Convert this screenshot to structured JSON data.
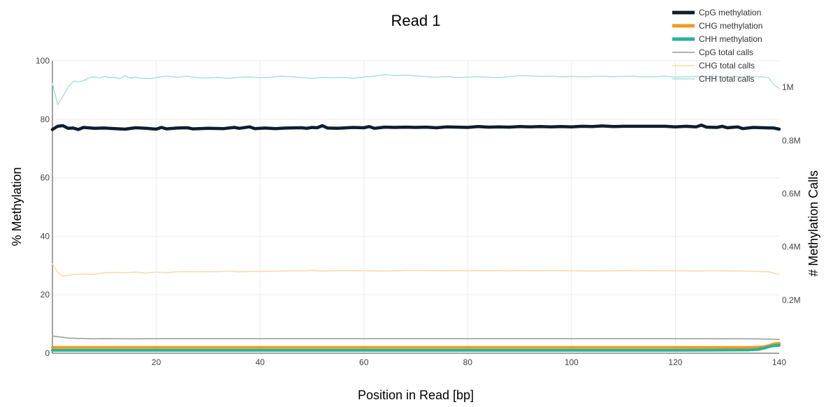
{
  "chart_data": {
    "type": "line",
    "title": "Read 1",
    "xlabel": "Position in Read [bp]",
    "ylabel": "% Methylation",
    "y2label": "# Methylation Calls",
    "xlim": [
      0,
      140
    ],
    "ylim": [
      0,
      100
    ],
    "y2lim": [
      0,
      1100000
    ],
    "grid": true,
    "legend_position": "top-right",
    "x_ticks": [
      20,
      40,
      60,
      80,
      100,
      120,
      140
    ],
    "x_tick_labels": [
      "20",
      "40",
      "60",
      "80",
      "100",
      "120",
      "140"
    ],
    "y_ticks": [
      0,
      20,
      40,
      60,
      80,
      100
    ],
    "y_tick_labels": [
      "0",
      "20",
      "40",
      "60",
      "80",
      "100"
    ],
    "y2_ticks": [
      200000,
      400000,
      600000,
      800000,
      1000000
    ],
    "y2_tick_labels": [
      "0.2M",
      "0.4M",
      "0.6M",
      "0.8M",
      "1M"
    ],
    "series": [
      {
        "name": "CpG methylation",
        "axis": "left",
        "color": "#0e1e2e",
        "points": [
          [
            0,
            76.5
          ],
          [
            1,
            77.6
          ],
          [
            2,
            77.8
          ],
          [
            3,
            76.9
          ],
          [
            4,
            77.0
          ],
          [
            5,
            76.5
          ],
          [
            6,
            77.2
          ],
          [
            8,
            76.9
          ],
          [
            10,
            77.0
          ],
          [
            12,
            76.8
          ],
          [
            14,
            76.6
          ],
          [
            16,
            77.1
          ],
          [
            18,
            76.9
          ],
          [
            20,
            76.6
          ],
          [
            21,
            77.2
          ],
          [
            22,
            76.7
          ],
          [
            24,
            77.0
          ],
          [
            26,
            77.1
          ],
          [
            27,
            76.7
          ],
          [
            30,
            76.9
          ],
          [
            33,
            76.8
          ],
          [
            35,
            77.2
          ],
          [
            36,
            76.9
          ],
          [
            38,
            77.4
          ],
          [
            39,
            76.8
          ],
          [
            41,
            77.0
          ],
          [
            43,
            76.8
          ],
          [
            45,
            77.0
          ],
          [
            48,
            77.1
          ],
          [
            49,
            76.9
          ],
          [
            50,
            77.2
          ],
          [
            51,
            77.1
          ],
          [
            52,
            77.8
          ],
          [
            53,
            77.0
          ],
          [
            55,
            76.9
          ],
          [
            58,
            77.2
          ],
          [
            60,
            77.1
          ],
          [
            61,
            77.5
          ],
          [
            62,
            76.9
          ],
          [
            64,
            77.3
          ],
          [
            66,
            77.2
          ],
          [
            68,
            77.3
          ],
          [
            70,
            77.2
          ],
          [
            72,
            77.3
          ],
          [
            74,
            77.1
          ],
          [
            76,
            77.4
          ],
          [
            78,
            77.3
          ],
          [
            80,
            77.2
          ],
          [
            82,
            77.5
          ],
          [
            84,
            77.3
          ],
          [
            86,
            77.4
          ],
          [
            88,
            77.3
          ],
          [
            90,
            77.5
          ],
          [
            92,
            77.4
          ],
          [
            94,
            77.5
          ],
          [
            96,
            77.4
          ],
          [
            98,
            77.5
          ],
          [
            100,
            77.4
          ],
          [
            102,
            77.6
          ],
          [
            104,
            77.5
          ],
          [
            106,
            77.7
          ],
          [
            108,
            77.5
          ],
          [
            110,
            77.6
          ],
          [
            112,
            77.6
          ],
          [
            114,
            77.6
          ],
          [
            116,
            77.6
          ],
          [
            118,
            77.6
          ],
          [
            120,
            77.4
          ],
          [
            122,
            77.6
          ],
          [
            124,
            77.4
          ],
          [
            125,
            78.0
          ],
          [
            126,
            77.3
          ],
          [
            128,
            77.2
          ],
          [
            129,
            77.6
          ],
          [
            130,
            77.1
          ],
          [
            132,
            77.4
          ],
          [
            133,
            76.8
          ],
          [
            135,
            77.2
          ],
          [
            137,
            77.1
          ],
          [
            139,
            77.0
          ],
          [
            140,
            76.6
          ]
        ]
      },
      {
        "name": "CHG methylation",
        "axis": "left",
        "color": "#f29a1c",
        "points": [
          [
            0,
            2.0
          ],
          [
            10,
            2.0
          ],
          [
            20,
            2.0
          ],
          [
            35,
            2.0
          ],
          [
            40,
            2.0
          ],
          [
            60,
            2.0
          ],
          [
            80,
            2.0
          ],
          [
            100,
            2.0
          ],
          [
            120,
            2.0
          ],
          [
            135,
            2.0
          ],
          [
            137,
            2.2
          ],
          [
            138,
            2.6
          ],
          [
            139,
            3.2
          ],
          [
            140,
            3.4
          ]
        ]
      },
      {
        "name": "CHH methylation",
        "axis": "left",
        "color": "#26b39a",
        "points": [
          [
            0,
            1.0
          ],
          [
            20,
            1.0
          ],
          [
            40,
            1.0
          ],
          [
            60,
            1.0
          ],
          [
            80,
            1.0
          ],
          [
            100,
            1.0
          ],
          [
            120,
            1.0
          ],
          [
            134,
            1.1
          ],
          [
            136,
            1.3
          ],
          [
            137,
            1.7
          ],
          [
            138,
            2.2
          ],
          [
            139,
            2.6
          ],
          [
            140,
            2.7
          ]
        ]
      },
      {
        "name": "CpG total calls",
        "axis": "right",
        "color": "#999999",
        "points": [
          [
            0,
            65000
          ],
          [
            1,
            62000
          ],
          [
            2,
            60000
          ],
          [
            3,
            57000
          ],
          [
            5,
            56000
          ],
          [
            8,
            54000
          ],
          [
            10,
            55000
          ],
          [
            15,
            54000
          ],
          [
            20,
            55000
          ],
          [
            40,
            55000
          ],
          [
            60,
            55000
          ],
          [
            80,
            55000
          ],
          [
            100,
            55000
          ],
          [
            120,
            55000
          ],
          [
            135,
            54000
          ],
          [
            138,
            53000
          ],
          [
            140,
            52000
          ]
        ]
      },
      {
        "name": "CHG total calls",
        "axis": "right",
        "color": "#fdd8a8",
        "points": [
          [
            0,
            336000
          ],
          [
            1,
            305000
          ],
          [
            2,
            290000
          ],
          [
            3,
            292000
          ],
          [
            4,
            296000
          ],
          [
            6,
            298000
          ],
          [
            8,
            296000
          ],
          [
            10,
            303000
          ],
          [
            12,
            304000
          ],
          [
            14,
            303000
          ],
          [
            16,
            305000
          ],
          [
            18,
            302000
          ],
          [
            20,
            305000
          ],
          [
            22,
            303000
          ],
          [
            24,
            306000
          ],
          [
            26,
            307000
          ],
          [
            28,
            306000
          ],
          [
            30,
            307000
          ],
          [
            32,
            307000
          ],
          [
            34,
            309000
          ],
          [
            36,
            306000
          ],
          [
            38,
            308000
          ],
          [
            40,
            308000
          ],
          [
            44,
            309000
          ],
          [
            48,
            310000
          ],
          [
            50,
            312000
          ],
          [
            52,
            309000
          ],
          [
            56,
            311000
          ],
          [
            60,
            310000
          ],
          [
            64,
            309000
          ],
          [
            68,
            311000
          ],
          [
            72,
            311000
          ],
          [
            76,
            310000
          ],
          [
            80,
            311000
          ],
          [
            84,
            310000
          ],
          [
            88,
            311000
          ],
          [
            92,
            310000
          ],
          [
            96,
            311000
          ],
          [
            100,
            310000
          ],
          [
            104,
            309000
          ],
          [
            108,
            310000
          ],
          [
            112,
            311000
          ],
          [
            116,
            310000
          ],
          [
            120,
            310000
          ],
          [
            124,
            309000
          ],
          [
            128,
            310000
          ],
          [
            132,
            309000
          ],
          [
            136,
            308000
          ],
          [
            138,
            306000
          ],
          [
            139,
            301000
          ],
          [
            140,
            296000
          ]
        ]
      },
      {
        "name": "CHH total calls",
        "axis": "right",
        "color": "#a8e2dc",
        "points": [
          [
            0,
            1015000
          ],
          [
            1,
            935000
          ],
          [
            2,
            965000
          ],
          [
            3,
            1000000
          ],
          [
            4,
            1023000
          ],
          [
            5,
            1021000
          ],
          [
            6,
            1025000
          ],
          [
            7,
            1035000
          ],
          [
            8,
            1040000
          ],
          [
            9,
            1035000
          ],
          [
            10,
            1042000
          ],
          [
            11,
            1036000
          ],
          [
            12,
            1038000
          ],
          [
            13,
            1032000
          ],
          [
            14,
            1044000
          ],
          [
            15,
            1034000
          ],
          [
            16,
            1038000
          ],
          [
            17,
            1034000
          ],
          [
            19,
            1033000
          ],
          [
            21,
            1040000
          ],
          [
            22,
            1042000
          ],
          [
            24,
            1038000
          ],
          [
            26,
            1042000
          ],
          [
            28,
            1036000
          ],
          [
            30,
            1035000
          ],
          [
            32,
            1037000
          ],
          [
            34,
            1034000
          ],
          [
            36,
            1038000
          ],
          [
            38,
            1040000
          ],
          [
            40,
            1036000
          ],
          [
            42,
            1038000
          ],
          [
            44,
            1042000
          ],
          [
            46,
            1040000
          ],
          [
            48,
            1037000
          ],
          [
            50,
            1034000
          ],
          [
            52,
            1037000
          ],
          [
            54,
            1036000
          ],
          [
            56,
            1037000
          ],
          [
            58,
            1034000
          ],
          [
            60,
            1039000
          ],
          [
            62,
            1042000
          ],
          [
            64,
            1048000
          ],
          [
            66,
            1044000
          ],
          [
            68,
            1046000
          ],
          [
            70,
            1043000
          ],
          [
            72,
            1040000
          ],
          [
            74,
            1038000
          ],
          [
            76,
            1041000
          ],
          [
            78,
            1037000
          ],
          [
            80,
            1038000
          ],
          [
            82,
            1040000
          ],
          [
            84,
            1038000
          ],
          [
            86,
            1036000
          ],
          [
            88,
            1040000
          ],
          [
            90,
            1044000
          ],
          [
            92,
            1043000
          ],
          [
            94,
            1041000
          ],
          [
            96,
            1042000
          ],
          [
            98,
            1040000
          ],
          [
            100,
            1041000
          ],
          [
            102,
            1039000
          ],
          [
            104,
            1041000
          ],
          [
            106,
            1042000
          ],
          [
            108,
            1040000
          ],
          [
            110,
            1041000
          ],
          [
            112,
            1042000
          ],
          [
            114,
            1039000
          ],
          [
            116,
            1040000
          ],
          [
            118,
            1042000
          ],
          [
            120,
            1038000
          ],
          [
            122,
            1040000
          ],
          [
            124,
            1041000
          ],
          [
            126,
            1040000
          ],
          [
            128,
            1041000
          ],
          [
            130,
            1039000
          ],
          [
            132,
            1040000
          ],
          [
            134,
            1041000
          ],
          [
            136,
            1040000
          ],
          [
            137,
            1039000
          ],
          [
            138,
            1035000
          ],
          [
            139,
            1010000
          ],
          [
            140,
            995000
          ]
        ]
      }
    ]
  }
}
